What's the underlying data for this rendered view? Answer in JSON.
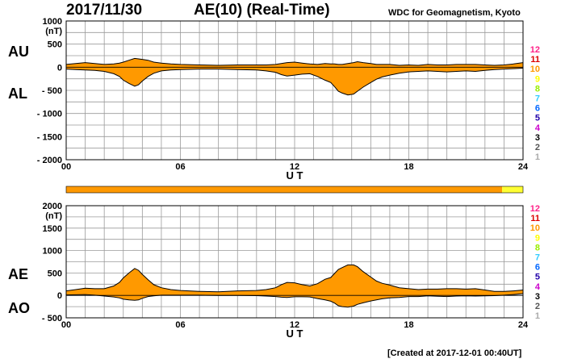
{
  "header": {
    "date": "2017/11/30",
    "title": "AE(10) (Real-Time)",
    "source": "WDC for Geomagnetism, Kyoto"
  },
  "footer": {
    "created": "[Created at 2017-12-01 00:40UT]"
  },
  "colors": {
    "fill": "#ff9900",
    "edge": "#000000",
    "grid": "#9a9a9a",
    "highlight": "#ffff33"
  },
  "station_levels": {
    "labels": [
      "12",
      "11",
      "10",
      "9",
      "8",
      "7",
      "6",
      "5",
      "4",
      "3",
      "2",
      "1"
    ],
    "colors": [
      "#ff2288",
      "#dd0000",
      "#ff9900",
      "#ffff00",
      "#99ee00",
      "#33ccff",
      "#0066ff",
      "#2200aa",
      "#cc00cc",
      "#000000",
      "#555555",
      "#aaaaaa"
    ]
  },
  "chart_data": [
    {
      "type": "area",
      "name": "AU/AL",
      "ylabel_unit": "(nT)",
      "big_labels": {
        "upper": "AU",
        "lower": "AL"
      },
      "xlabel": "U T",
      "xlim": [
        0,
        24
      ],
      "ylim": [
        -2000,
        1000
      ],
      "ytick_labels": [
        "1000",
        "500",
        "0",
        "- 500",
        "- 1000",
        "- 1500",
        "- 2000"
      ],
      "yticks": [
        1000,
        500,
        0,
        -500,
        -1000,
        -1500,
        -2000
      ],
      "xtick_labels": [
        "00",
        "06",
        "12",
        "18",
        "24"
      ],
      "xticks": [
        0,
        6,
        12,
        18,
        24
      ],
      "grid": true,
      "x": [
        0,
        0.5,
        1,
        1.5,
        2,
        2.5,
        2.8,
        3,
        3.3,
        3.6,
        3.8,
        4,
        4.3,
        4.6,
        5,
        5.5,
        6,
        7,
        8,
        9,
        10,
        10.5,
        11,
        11.3,
        11.6,
        12,
        12.4,
        12.8,
        13.2,
        13.6,
        13.9,
        14.1,
        14.3,
        14.5,
        14.8,
        15.1,
        15.3,
        15.6,
        16,
        16.3,
        16.6,
        17,
        17.5,
        18,
        18.5,
        19,
        19.5,
        20,
        20.5,
        21,
        21.5,
        22,
        22.5,
        23,
        23.5,
        24
      ],
      "upper": [
        60,
        80,
        100,
        80,
        60,
        70,
        90,
        110,
        150,
        190,
        180,
        170,
        150,
        110,
        90,
        70,
        60,
        50,
        40,
        50,
        50,
        50,
        60,
        80,
        100,
        110,
        90,
        70,
        60,
        80,
        70,
        70,
        60,
        60,
        80,
        100,
        120,
        100,
        80,
        60,
        60,
        60,
        40,
        50,
        40,
        60,
        50,
        50,
        60,
        60,
        60,
        50,
        40,
        50,
        70,
        100
      ],
      "lower": [
        -40,
        -50,
        -60,
        -70,
        -90,
        -140,
        -200,
        -280,
        -350,
        -410,
        -380,
        -300,
        -200,
        -130,
        -80,
        -60,
        -50,
        -40,
        -40,
        -50,
        -60,
        -80,
        -110,
        -160,
        -190,
        -170,
        -150,
        -140,
        -200,
        -280,
        -330,
        -420,
        -520,
        -560,
        -600,
        -580,
        -520,
        -430,
        -330,
        -260,
        -210,
        -170,
        -130,
        -100,
        -90,
        -80,
        -90,
        -100,
        -90,
        -80,
        -90,
        -70,
        -50,
        -40,
        -30,
        -20
      ]
    },
    {
      "type": "area",
      "name": "AE/AO",
      "ylabel_unit": "(nT)",
      "big_labels": {
        "upper": "AE",
        "lower": "AO"
      },
      "xlabel": "U T",
      "xlim": [
        0,
        24
      ],
      "ylim": [
        -500,
        2000
      ],
      "ytick_labels": [
        "2000",
        "1500",
        "1000",
        "500",
        "0",
        "- 500"
      ],
      "yticks": [
        2000,
        1500,
        1000,
        500,
        0,
        -500
      ],
      "xtick_labels": [
        "00",
        "06",
        "12",
        "18",
        "24"
      ],
      "xticks": [
        0,
        6,
        12,
        18,
        24
      ],
      "grid": true,
      "x": [
        0,
        0.5,
        1,
        1.5,
        2,
        2.5,
        2.8,
        3,
        3.3,
        3.6,
        3.8,
        4,
        4.3,
        4.6,
        5,
        5.5,
        6,
        7,
        8,
        9,
        10,
        10.5,
        11,
        11.3,
        11.6,
        12,
        12.4,
        12.8,
        13.2,
        13.6,
        13.9,
        14.1,
        14.3,
        14.5,
        14.8,
        15.1,
        15.3,
        15.6,
        16,
        16.3,
        16.6,
        17,
        17.5,
        18,
        18.5,
        19,
        19.5,
        20,
        20.5,
        21,
        21.5,
        22,
        22.5,
        23,
        23.5,
        24
      ],
      "upper": [
        100,
        130,
        160,
        150,
        150,
        210,
        290,
        390,
        500,
        600,
        560,
        470,
        350,
        240,
        170,
        130,
        110,
        90,
        80,
        100,
        110,
        130,
        170,
        240,
        290,
        280,
        240,
        210,
        260,
        360,
        400,
        490,
        580,
        620,
        680,
        680,
        640,
        530,
        410,
        320,
        270,
        230,
        170,
        150,
        130,
        140,
        140,
        150,
        150,
        140,
        150,
        120,
        90,
        90,
        100,
        120
      ],
      "lower": [
        10,
        15,
        20,
        5,
        -15,
        -35,
        -55,
        -85,
        -100,
        -110,
        -100,
        -65,
        -25,
        -10,
        5,
        5,
        5,
        5,
        0,
        0,
        -5,
        -15,
        -25,
        -40,
        -45,
        -30,
        -30,
        -35,
        -70,
        -100,
        -130,
        -170,
        -230,
        -250,
        -260,
        -240,
        -200,
        -165,
        -125,
        -100,
        -75,
        -55,
        -45,
        -25,
        -25,
        -10,
        -20,
        -25,
        -15,
        -10,
        -15,
        -10,
        -5,
        5,
        20,
        40
      ]
    }
  ],
  "status_bar": {
    "xlim": [
      0,
      24
    ],
    "highlight_start": 22.9
  }
}
